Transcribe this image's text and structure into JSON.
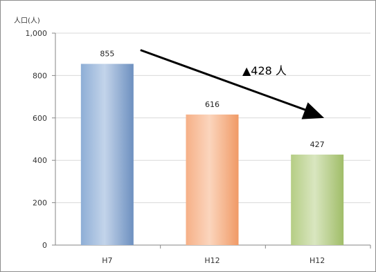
{
  "chart_data": {
    "type": "bar",
    "title": "",
    "xlabel": "",
    "ylabel": "人口(人)",
    "categories": [
      "H7",
      "H12",
      "H12"
    ],
    "values": [
      855,
      616,
      427
    ],
    "data_labels": [
      "855",
      "616",
      "427"
    ],
    "ylim": [
      0,
      1000
    ],
    "yticks": [
      0,
      200,
      400,
      600,
      800,
      1000
    ],
    "ytick_labels": [
      "0",
      "200",
      "400",
      "600",
      "800",
      "1,000"
    ],
    "grid": true,
    "legend": "none",
    "bar_colors": [
      "#7b9dc9",
      "#f4a070",
      "#a9c472"
    ],
    "annotation": {
      "text": "▲428 人",
      "arrow": true
    }
  }
}
